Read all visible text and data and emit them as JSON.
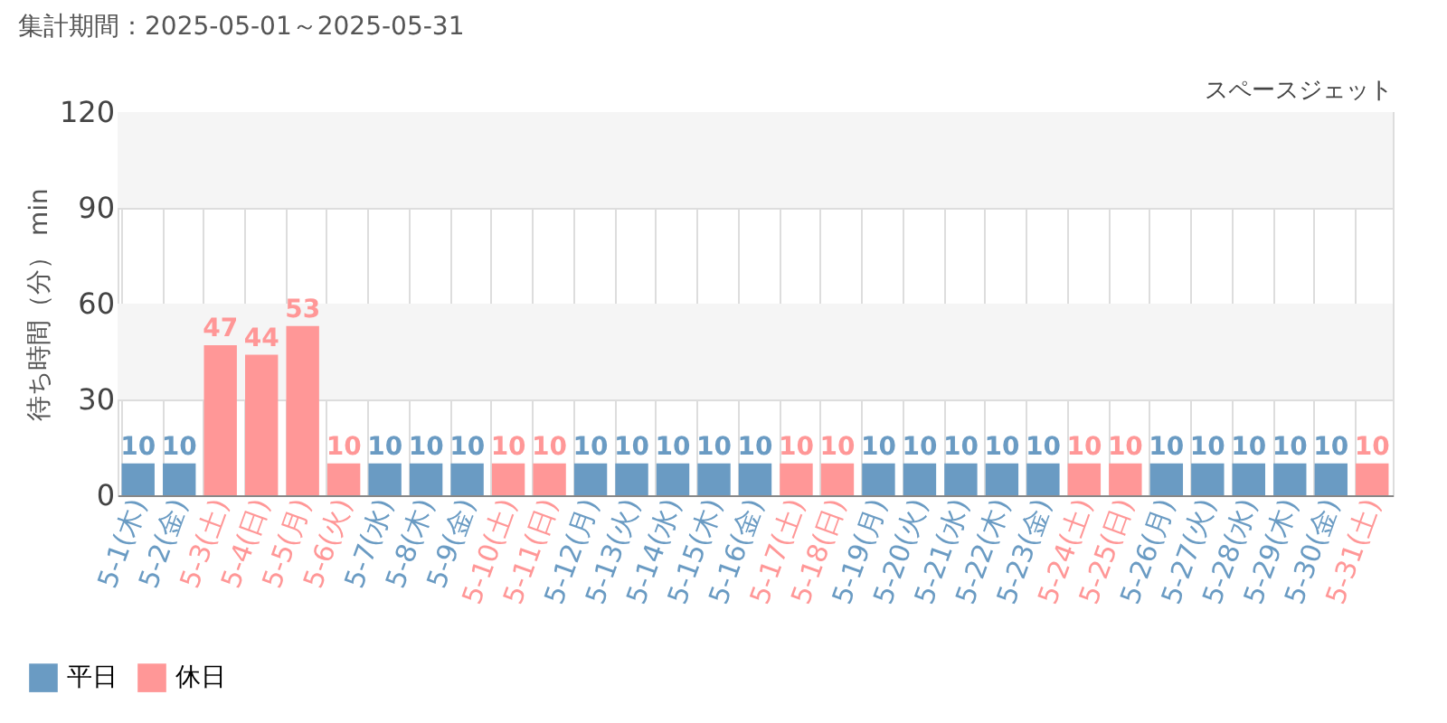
{
  "chart_data": {
    "type": "bar",
    "title": "集計期間：2025-05-01～2025-05-31",
    "subtitle": "スペースジェット",
    "ylabel": "待ち時間（分） min",
    "categories": [
      "5-1(木)",
      "5-2(金)",
      "5-3(土)",
      "5-4(日)",
      "5-5(月)",
      "5-6(火)",
      "5-7(水)",
      "5-8(木)",
      "5-9(金)",
      "5-10(土)",
      "5-11(日)",
      "5-12(月)",
      "5-13(火)",
      "5-14(水)",
      "5-15(木)",
      "5-16(金)",
      "5-17(土)",
      "5-18(日)",
      "5-19(月)",
      "5-20(火)",
      "5-21(水)",
      "5-22(木)",
      "5-23(金)",
      "5-24(土)",
      "5-25(日)",
      "5-26(月)",
      "5-27(火)",
      "5-28(水)",
      "5-29(木)",
      "5-30(金)",
      "5-31(土)"
    ],
    "series": [
      {
        "name": "平日",
        "color": "#6a9bc3",
        "values": [
          10,
          10,
          null,
          null,
          null,
          null,
          10,
          10,
          10,
          null,
          null,
          10,
          10,
          10,
          10,
          10,
          null,
          null,
          10,
          10,
          10,
          10,
          10,
          null,
          null,
          10,
          10,
          10,
          10,
          10,
          null
        ]
      },
      {
        "name": "休日",
        "color": "#ff9797",
        "values": [
          null,
          null,
          47,
          44,
          53,
          10,
          null,
          null,
          null,
          10,
          10,
          null,
          null,
          null,
          null,
          null,
          10,
          10,
          null,
          null,
          null,
          null,
          null,
          10,
          10,
          null,
          null,
          null,
          null,
          null,
          10
        ]
      }
    ],
    "ylim": [
      0,
      120
    ],
    "yticks": [
      0,
      30,
      60,
      90,
      120
    ],
    "grid": true,
    "data_labels": true,
    "legend": "bottom left",
    "bands": [
      {
        "axis": "y",
        "from": 90,
        "to": 120,
        "color": "#f5f5f5"
      },
      {
        "axis": "y",
        "from": 30,
        "to": 60,
        "color": "#f5f5f5"
      }
    ]
  }
}
